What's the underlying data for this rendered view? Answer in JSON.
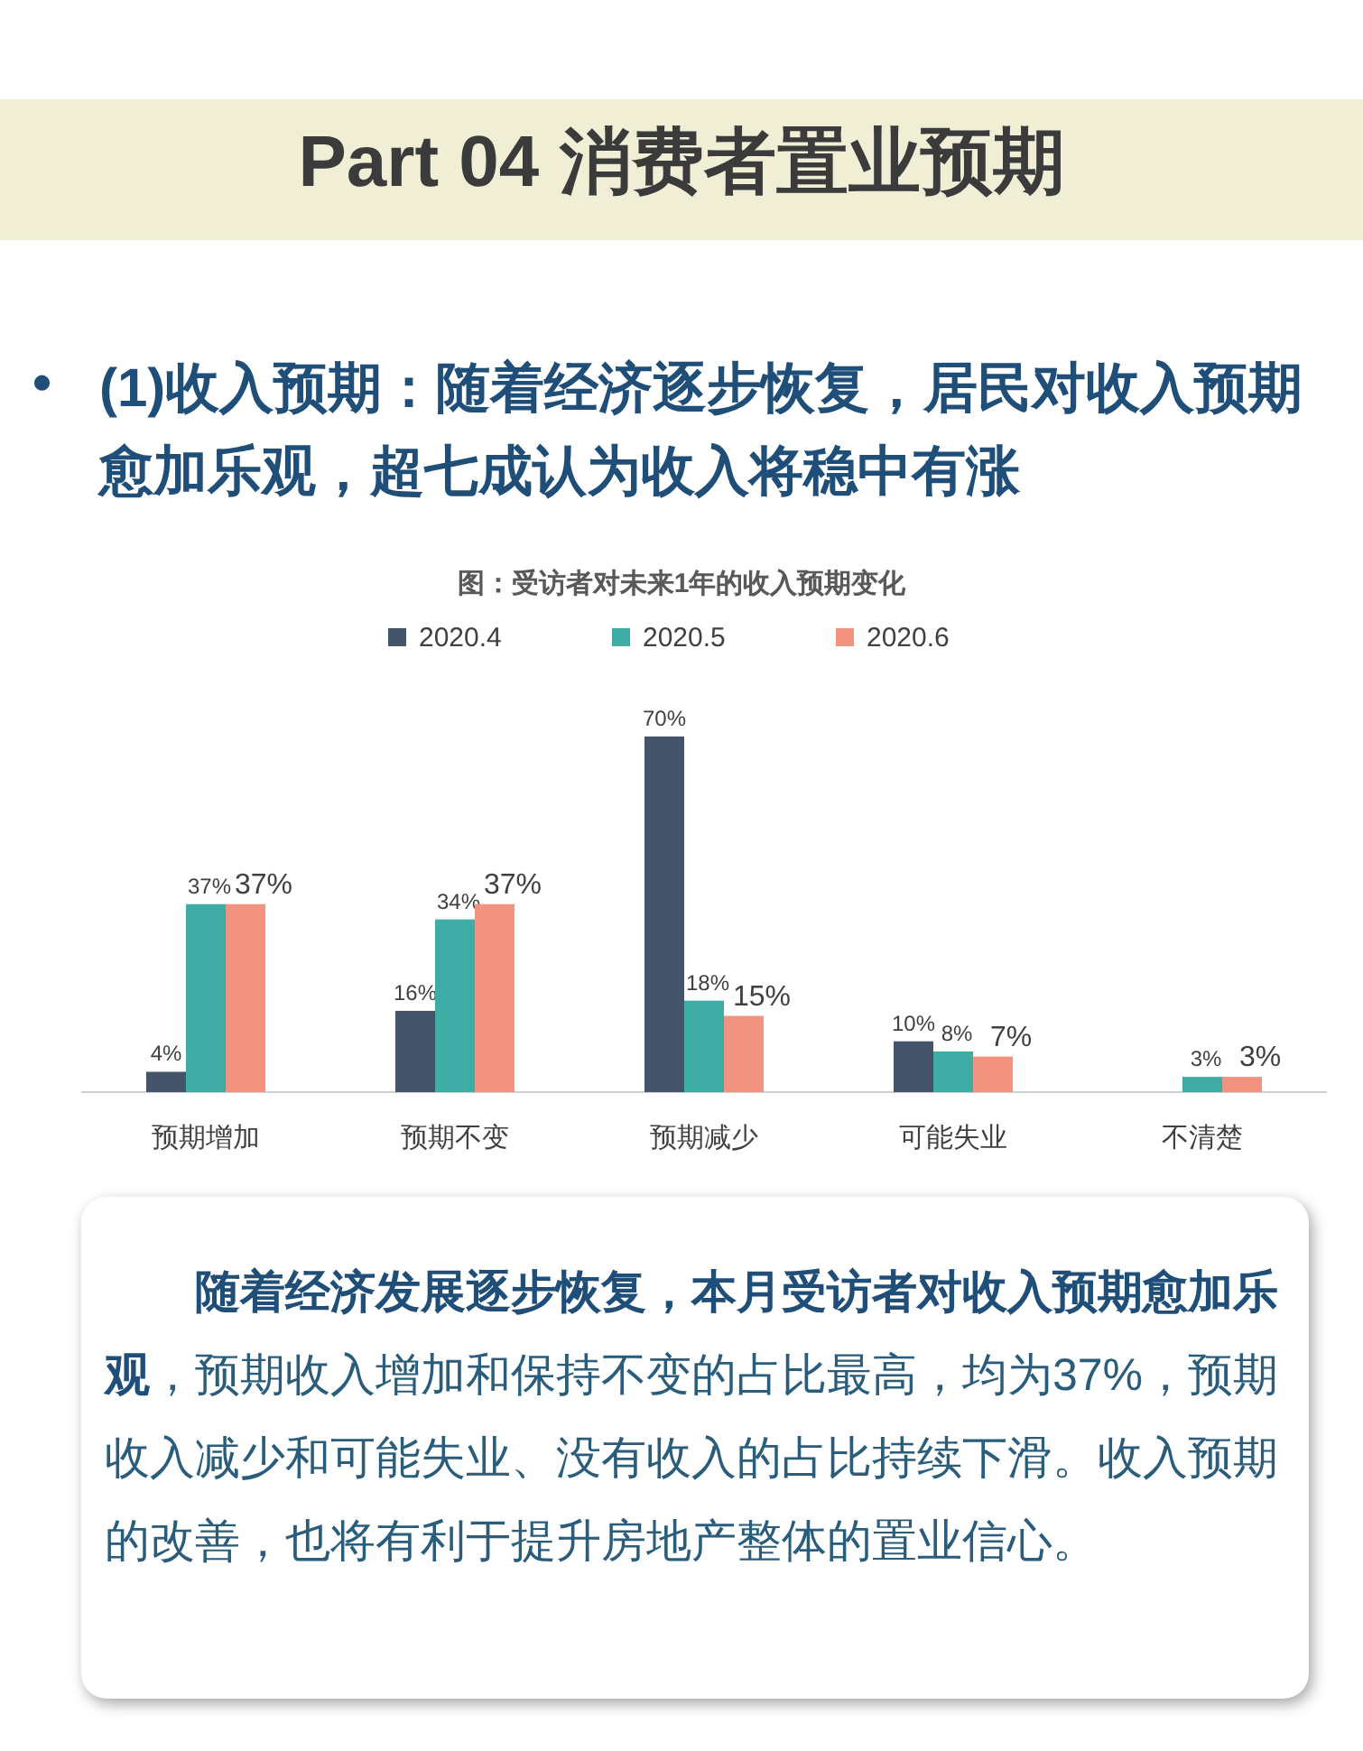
{
  "chart_data": {
    "type": "bar",
    "title": "图：受访者对未来1年的收入预期变化",
    "categories": [
      "预期增加",
      "预期不变",
      "预期减少",
      "可能失业",
      "不清楚"
    ],
    "series": [
      {
        "name": "2020.4",
        "color": "#44546a",
        "values": [
          4,
          16,
          70,
          10,
          null
        ],
        "value_labels": [
          "4%",
          "16%",
          "70%",
          "10%",
          null
        ]
      },
      {
        "name": "2020.5",
        "color": "#3fada5",
        "values": [
          37,
          34,
          18,
          8,
          3
        ],
        "value_labels": [
          "37%",
          "34%",
          "18%",
          "8%",
          "3%"
        ]
      },
      {
        "name": "2020.6",
        "color": "#f1937f",
        "values": [
          37,
          37,
          15,
          7,
          3
        ],
        "value_labels": [
          "37%",
          "37%",
          "15%",
          "7%",
          "3%"
        ]
      }
    ],
    "legend": "top",
    "annotations": [
      "Part  04   消费者置业预期",
      "•",
      "(1)收入预期：随着经济逐步恢复，居民对收入预期愈加乐观，超七成认为收入将稳中有涨",
      "随着经济发展逐步恢复，本月受访者对收入预期愈加乐观",
      "，预期收入增加和保持不变的占比最高，均为37%，预期收入减少和可能失业、没有收入的占比持续下滑。收入预期的改善，也将有利于提升房地产整体的置业信心。"
    ]
  }
}
